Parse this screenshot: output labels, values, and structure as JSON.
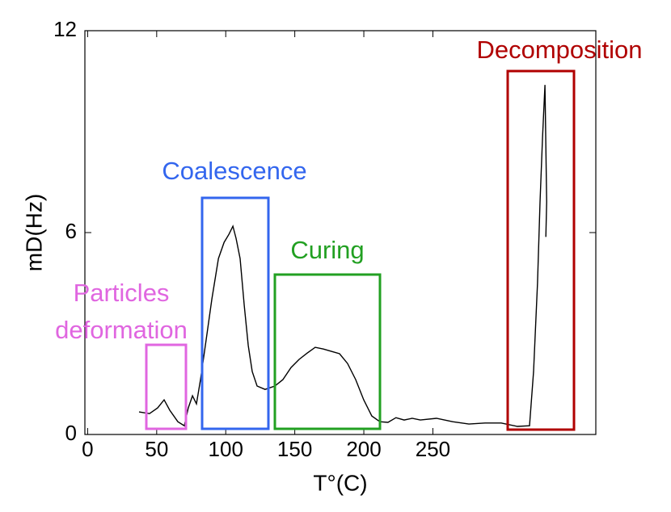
{
  "chart_data": {
    "type": "line",
    "xlabel": "T°(C)",
    "ylabel": "mD(Hz)",
    "xlim": [
      -2,
      368
    ],
    "ylim": [
      0,
      12
    ],
    "xticks": [
      0,
      50,
      100,
      150,
      200,
      250
    ],
    "yticks": [
      0,
      6,
      12
    ],
    "series": [
      {
        "color": "#000000",
        "x": [
          37.2,
          44.8,
          50.7,
          55.4,
          59.5,
          65.3,
          70.0,
          72.9,
          75.9,
          78.8,
          81.7,
          85.9,
          90.0,
          94.7,
          98.8,
          102.3,
          105.2,
          107.5,
          110.4,
          113.4,
          116.3,
          119.2,
          122.7,
          128.5,
          135.6,
          141.4,
          147.3,
          153.1,
          159.0,
          164.8,
          170.7,
          176.5,
          182.4,
          188.2,
          194.1,
          199.9,
          205.8,
          211.6,
          217.5,
          223.3,
          229.2,
          235.0,
          240.9,
          252.6,
          264.3,
          276.1,
          287.8,
          299.5,
          311.2,
          320.0,
          322.9,
          325.8,
          327.6,
          329.4,
          331.2,
          332.4,
          331.8
        ],
        "values": [
          0.67,
          0.62,
          0.79,
          1.03,
          0.72,
          0.38,
          0.26,
          0.79,
          1.15,
          0.91,
          1.63,
          2.83,
          4.03,
          5.23,
          5.71,
          5.95,
          6.19,
          5.83,
          5.23,
          3.84,
          2.64,
          1.87,
          1.44,
          1.34,
          1.44,
          1.63,
          1.99,
          2.23,
          2.42,
          2.59,
          2.54,
          2.47,
          2.4,
          2.11,
          1.63,
          1.03,
          0.55,
          0.38,
          0.36,
          0.5,
          0.43,
          0.48,
          0.43,
          0.48,
          0.38,
          0.31,
          0.34,
          0.34,
          0.24,
          0.26,
          1.87,
          4.51,
          6.91,
          8.83,
          10.39,
          6.91,
          5.87
        ]
      }
    ],
    "annotations": [
      {
        "text": "Particles deformation",
        "color": "#e066e0"
      },
      {
        "text": "Coalescence",
        "color": "#3366ee"
      },
      {
        "text": "Curing",
        "color": "#22a022"
      },
      {
        "text": "Decomposition",
        "color": "#b00000"
      }
    ]
  }
}
